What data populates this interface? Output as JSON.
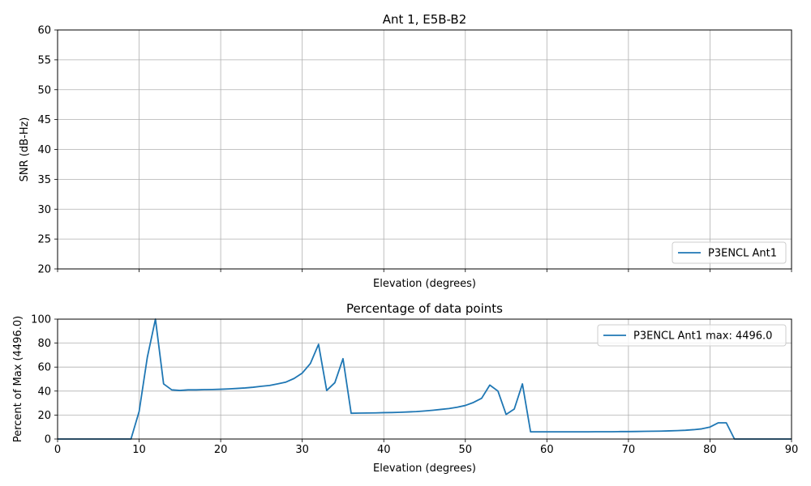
{
  "chart_data": [
    {
      "type": "line",
      "title": "Ant 1, E5B-B2",
      "xlabel": "Elevation (degrees)",
      "ylabel": "SNR (dB-Hz)",
      "xlim": [
        0,
        90
      ],
      "ylim": [
        20,
        60
      ],
      "xticks": [
        0,
        10,
        20,
        30,
        40,
        50,
        60,
        70,
        80,
        90
      ],
      "yticks": [
        20,
        25,
        30,
        35,
        40,
        45,
        50,
        55,
        60
      ],
      "show_xtick_labels": false,
      "grid": true,
      "legend_position": "lower-right",
      "series": [
        {
          "name": "P3ENCL Ant1",
          "color": "#1f77b4",
          "x": [],
          "y": []
        }
      ]
    },
    {
      "type": "line",
      "title": "Percentage of data points",
      "xlabel": "Elevation (degrees)",
      "ylabel": "Percent of Max (4496.0)",
      "xlim": [
        0,
        90
      ],
      "ylim": [
        0,
        100
      ],
      "xticks": [
        0,
        10,
        20,
        30,
        40,
        50,
        60,
        70,
        80,
        90
      ],
      "yticks": [
        0,
        20,
        40,
        60,
        80,
        100
      ],
      "show_xtick_labels": true,
      "grid": true,
      "legend_position": "upper-right",
      "series": [
        {
          "name": "P3ENCL Ant1 max: 4496.0",
          "color": "#1f77b4",
          "x": [
            0,
            1,
            2,
            3,
            4,
            5,
            6,
            7,
            8,
            9,
            10,
            11,
            12,
            13,
            14,
            15,
            16,
            17,
            18,
            19,
            20,
            21,
            22,
            23,
            24,
            25,
            26,
            27,
            28,
            29,
            30,
            31,
            32,
            33,
            34,
            35,
            36,
            37,
            38,
            39,
            40,
            41,
            42,
            43,
            44,
            45,
            46,
            47,
            48,
            49,
            50,
            51,
            52,
            53,
            54,
            55,
            56,
            57,
            58,
            59,
            60,
            61,
            62,
            63,
            64,
            65,
            66,
            67,
            68,
            69,
            70,
            71,
            72,
            73,
            74,
            75,
            76,
            77,
            78,
            79,
            80,
            81,
            82,
            83,
            84,
            85,
            86,
            87,
            88,
            89,
            90
          ],
          "y": [
            0,
            0,
            0,
            0,
            0,
            0,
            0,
            0,
            0,
            0,
            23,
            68,
            100,
            46,
            41,
            40.5,
            41,
            41,
            41.2,
            41.3,
            41.5,
            41.8,
            42.2,
            42.6,
            43.2,
            44,
            44.7,
            46,
            47.5,
            50.5,
            55,
            63,
            79,
            40.5,
            47,
            67,
            21.5,
            21.6,
            21.7,
            21.8,
            22,
            22.1,
            22.3,
            22.6,
            22.9,
            23.4,
            24,
            24.7,
            25.4,
            26.5,
            28,
            30.5,
            34,
            45,
            40,
            20.5,
            25,
            46,
            6,
            6,
            6,
            6,
            6,
            6,
            6,
            6,
            6.1,
            6.1,
            6.1,
            6.2,
            6.2,
            6.3,
            6.4,
            6.5,
            6.6,
            6.8,
            7,
            7.3,
            7.8,
            8.5,
            10,
            13.5,
            13.5,
            0,
            0,
            0,
            0,
            0,
            0,
            0,
            0
          ]
        }
      ]
    }
  ]
}
